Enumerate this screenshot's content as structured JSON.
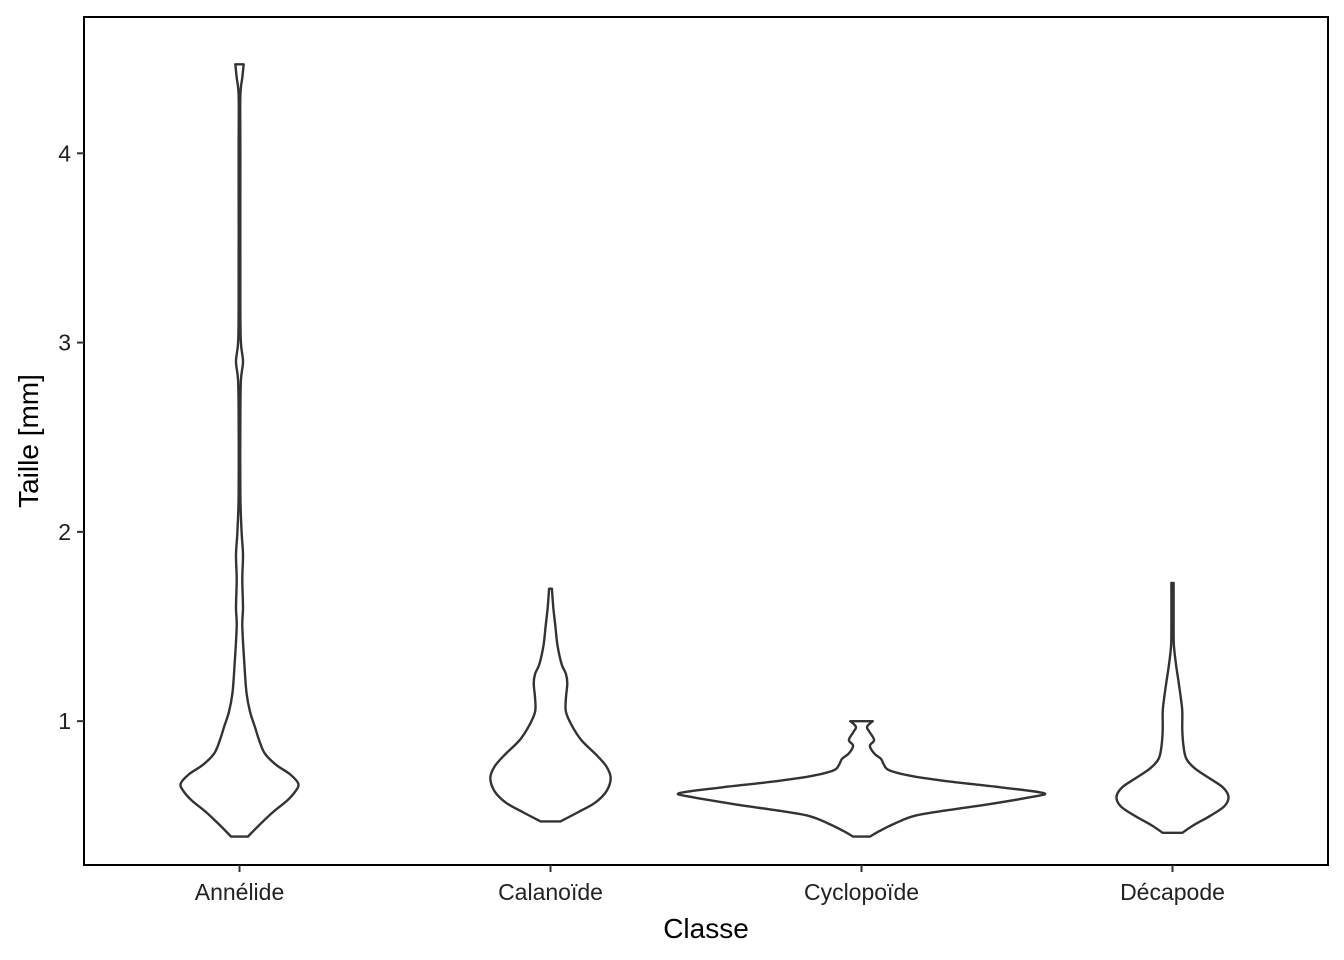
{
  "chart_data": {
    "type": "violin",
    "title": "",
    "xlabel": "Classe",
    "ylabel": "Taille  [mm]",
    "ylim": [
      0.24,
      4.72
    ],
    "yticks": [
      1,
      2,
      3,
      4
    ],
    "grid": false,
    "categories": [
      "Annélide",
      "Calanoïde",
      "Cyclopoïde",
      "Décapode"
    ],
    "violins": [
      {
        "category": "Annélide",
        "min": 0.39,
        "max": 4.47,
        "profile": [
          [
            0.39,
            0.06
          ],
          [
            0.45,
            0.14
          ],
          [
            0.52,
            0.24
          ],
          [
            0.58,
            0.34
          ],
          [
            0.63,
            0.4
          ],
          [
            0.67,
            0.42
          ],
          [
            0.72,
            0.36
          ],
          [
            0.77,
            0.26
          ],
          [
            0.83,
            0.18
          ],
          [
            0.9,
            0.14
          ],
          [
            0.97,
            0.11
          ],
          [
            1.05,
            0.075
          ],
          [
            1.15,
            0.05
          ],
          [
            1.3,
            0.035
          ],
          [
            1.5,
            0.02
          ],
          [
            1.6,
            0.025
          ],
          [
            1.75,
            0.02
          ],
          [
            1.88,
            0.025
          ],
          [
            2.0,
            0.015
          ],
          [
            2.2,
            0.006
          ],
          [
            2.6,
            0.006
          ],
          [
            2.8,
            0.01
          ],
          [
            2.9,
            0.025
          ],
          [
            3.0,
            0.01
          ],
          [
            3.2,
            0.006
          ],
          [
            4.0,
            0.006
          ],
          [
            4.3,
            0.006
          ],
          [
            4.4,
            0.02
          ],
          [
            4.47,
            0.03
          ]
        ]
      },
      {
        "category": "Calanoïde",
        "min": 0.47,
        "max": 1.7,
        "profile": [
          [
            0.47,
            0.07
          ],
          [
            0.52,
            0.2
          ],
          [
            0.57,
            0.32
          ],
          [
            0.63,
            0.4
          ],
          [
            0.7,
            0.43
          ],
          [
            0.76,
            0.4
          ],
          [
            0.82,
            0.33
          ],
          [
            0.9,
            0.22
          ],
          [
            0.98,
            0.15
          ],
          [
            1.05,
            0.11
          ],
          [
            1.12,
            0.11
          ],
          [
            1.2,
            0.12
          ],
          [
            1.25,
            0.11
          ],
          [
            1.3,
            0.08
          ],
          [
            1.4,
            0.05
          ],
          [
            1.5,
            0.035
          ],
          [
            1.6,
            0.02
          ],
          [
            1.7,
            0.01
          ]
        ]
      },
      {
        "category": "Cyclopoïde",
        "min": 0.39,
        "max": 1.0,
        "profile": [
          [
            0.39,
            0.06
          ],
          [
            0.42,
            0.13
          ],
          [
            0.46,
            0.24
          ],
          [
            0.5,
            0.38
          ],
          [
            0.53,
            0.62
          ],
          [
            0.56,
            0.9
          ],
          [
            0.6,
            1.22
          ],
          [
            0.62,
            1.3
          ],
          [
            0.65,
            1.0
          ],
          [
            0.68,
            0.64
          ],
          [
            0.71,
            0.36
          ],
          [
            0.74,
            0.2
          ],
          [
            0.77,
            0.16
          ],
          [
            0.8,
            0.14
          ],
          [
            0.83,
            0.09
          ],
          [
            0.87,
            0.06
          ],
          [
            0.9,
            0.09
          ],
          [
            0.94,
            0.06
          ],
          [
            0.97,
            0.04
          ],
          [
            1.0,
            0.08
          ]
        ]
      },
      {
        "category": "Décapode",
        "min": 0.41,
        "max": 1.73,
        "profile": [
          [
            0.41,
            0.07
          ],
          [
            0.45,
            0.15
          ],
          [
            0.5,
            0.27
          ],
          [
            0.55,
            0.37
          ],
          [
            0.6,
            0.4
          ],
          [
            0.65,
            0.36
          ],
          [
            0.7,
            0.26
          ],
          [
            0.75,
            0.16
          ],
          [
            0.8,
            0.1
          ],
          [
            0.86,
            0.08
          ],
          [
            0.95,
            0.07
          ],
          [
            1.05,
            0.07
          ],
          [
            1.12,
            0.06
          ],
          [
            1.2,
            0.045
          ],
          [
            1.3,
            0.025
          ],
          [
            1.4,
            0.01
          ],
          [
            1.5,
            0.008
          ],
          [
            1.73,
            0.008
          ]
        ]
      }
    ]
  }
}
